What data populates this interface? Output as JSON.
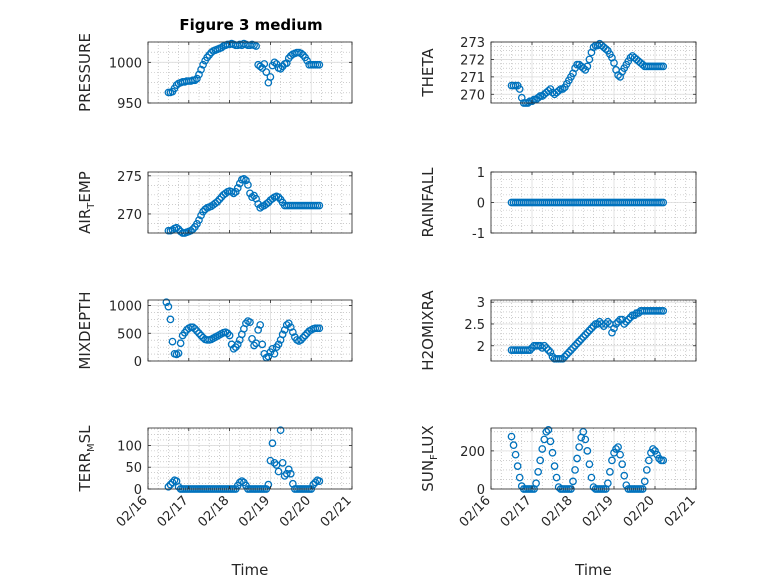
{
  "figure_title": "Figure 3 medium",
  "colors": {
    "marker": "#0072BD",
    "axis": "#262626",
    "grid": "#b0b0b0"
  },
  "chart_data": [
    {
      "type": "scatter",
      "title": "Figure 3 medium",
      "ylabel": "PRESSURE",
      "ylim": [
        950,
        1025
      ],
      "yticks": [
        950,
        1000
      ],
      "xlabel": "",
      "xticks": [
        "02/16",
        "02/17",
        "02/18",
        "02/19",
        "02/20",
        "02/21"
      ],
      "xlim": [
        0,
        5
      ],
      "grid": true,
      "x": [
        0.5,
        0.55,
        0.6,
        0.65,
        0.7,
        0.75,
        0.8,
        0.85,
        0.9,
        0.95,
        1.0,
        1.05,
        1.1,
        1.15,
        1.2,
        1.25,
        1.3,
        1.35,
        1.4,
        1.45,
        1.5,
        1.55,
        1.6,
        1.65,
        1.7,
        1.75,
        1.8,
        1.85,
        1.9,
        1.95,
        2.0,
        2.05,
        2.1,
        2.15,
        2.2,
        2.25,
        2.3,
        2.35,
        2.4,
        2.45,
        2.5,
        2.55,
        2.6,
        2.65,
        2.7,
        2.75,
        2.8,
        2.85,
        2.9,
        2.95,
        3.0,
        3.05,
        3.1,
        3.15,
        3.2,
        3.25,
        3.3,
        3.35,
        3.4,
        3.45,
        3.5,
        3.55,
        3.6,
        3.65,
        3.7,
        3.75,
        3.8,
        3.85,
        3.9,
        3.95,
        4.0,
        4.05,
        4.1,
        4.15,
        4.2
      ],
      "values": [
        963,
        963,
        964,
        968,
        972,
        974,
        975,
        976,
        976,
        977,
        977,
        977,
        978,
        978,
        980,
        985,
        991,
        997,
        1002,
        1006,
        1009,
        1012,
        1014,
        1015,
        1016,
        1017,
        1018,
        1020,
        1021,
        1022,
        1022,
        1023,
        1022,
        1021,
        1021,
        1022,
        1021,
        1023,
        1022,
        1021,
        1021,
        1022,
        1021,
        1020,
        997,
        995,
        993,
        998,
        988,
        975,
        982,
        996,
        1000,
        998,
        993,
        992,
        995,
        998,
        999,
        1005,
        1008,
        1010,
        1011,
        1012,
        1012,
        1011,
        1009,
        1006,
        1002,
        997,
        997,
        997,
        997,
        997,
        997
      ]
    },
    {
      "type": "scatter",
      "ylabel": "THETA",
      "ylim": [
        269.5,
        273
      ],
      "yticks": [
        270,
        271,
        272,
        273
      ],
      "xlabel": "",
      "xticks": [
        "02/16",
        "02/17",
        "02/18",
        "02/19",
        "02/20",
        "02/21"
      ],
      "xlim": [
        0,
        5
      ],
      "grid": true,
      "x": [
        0.5,
        0.55,
        0.6,
        0.65,
        0.7,
        0.75,
        0.8,
        0.85,
        0.9,
        0.95,
        1.0,
        1.05,
        1.1,
        1.15,
        1.2,
        1.25,
        1.3,
        1.35,
        1.4,
        1.45,
        1.5,
        1.55,
        1.6,
        1.65,
        1.7,
        1.75,
        1.8,
        1.85,
        1.9,
        1.95,
        2.0,
        2.05,
        2.1,
        2.15,
        2.2,
        2.25,
        2.3,
        2.35,
        2.4,
        2.45,
        2.5,
        2.55,
        2.6,
        2.65,
        2.7,
        2.75,
        2.8,
        2.85,
        2.9,
        2.95,
        3.0,
        3.05,
        3.1,
        3.15,
        3.2,
        3.25,
        3.3,
        3.35,
        3.4,
        3.45,
        3.5,
        3.55,
        3.6,
        3.65,
        3.7,
        3.75,
        3.8,
        3.85,
        3.9,
        3.95,
        4.0,
        4.05,
        4.1,
        4.15,
        4.2
      ],
      "values": [
        270.5,
        270.5,
        270.5,
        270.5,
        270.3,
        269.8,
        269.5,
        269.5,
        269.5,
        269.6,
        269.6,
        269.7,
        269.7,
        269.8,
        269.9,
        269.9,
        270.0,
        270.1,
        270.2,
        270.3,
        270.1,
        270.0,
        270.1,
        270.2,
        270.3,
        270.3,
        270.4,
        270.6,
        270.8,
        271.0,
        271.2,
        271.5,
        271.7,
        271.7,
        271.6,
        271.5,
        271.4,
        271.6,
        272.0,
        272.4,
        272.7,
        272.8,
        272.8,
        272.9,
        272.8,
        272.7,
        272.6,
        272.5,
        272.3,
        272.1,
        271.8,
        271.4,
        271.1,
        271.0,
        271.3,
        271.5,
        271.7,
        271.9,
        272.1,
        272.2,
        272.1,
        272.0,
        271.9,
        271.8,
        271.7,
        271.6,
        271.6,
        271.6,
        271.6,
        271.6,
        271.6,
        271.6,
        271.6,
        271.6,
        271.6
      ]
    },
    {
      "type": "scatter",
      "ylabel": "AIR",
      "ylabel_sub": "T",
      "ylabel_rest": "EMP",
      "ylim": [
        267.5,
        275.5
      ],
      "yticks": [
        270,
        275
      ],
      "xlabel": "",
      "xticks": [
        "02/16",
        "02/17",
        "02/18",
        "02/19",
        "02/20",
        "02/21"
      ],
      "xlim": [
        0,
        5
      ],
      "grid": true,
      "x": [
        0.5,
        0.55,
        0.6,
        0.65,
        0.7,
        0.75,
        0.8,
        0.85,
        0.9,
        0.95,
        1.0,
        1.05,
        1.1,
        1.15,
        1.2,
        1.25,
        1.3,
        1.35,
        1.4,
        1.45,
        1.5,
        1.55,
        1.6,
        1.65,
        1.7,
        1.75,
        1.8,
        1.85,
        1.9,
        1.95,
        2.0,
        2.05,
        2.1,
        2.15,
        2.2,
        2.25,
        2.3,
        2.35,
        2.4,
        2.45,
        2.5,
        2.55,
        2.6,
        2.65,
        2.7,
        2.75,
        2.8,
        2.85,
        2.9,
        2.95,
        3.0,
        3.05,
        3.1,
        3.15,
        3.2,
        3.25,
        3.3,
        3.35,
        3.4,
        3.45,
        3.5,
        3.55,
        3.6,
        3.65,
        3.7,
        3.75,
        3.8,
        3.85,
        3.9,
        3.95,
        4.0,
        4.05,
        4.1,
        4.15,
        4.2
      ],
      "values": [
        267.8,
        267.8,
        267.9,
        268.1,
        268.2,
        268.0,
        267.7,
        267.5,
        267.5,
        267.6,
        267.7,
        267.8,
        268.0,
        268.3,
        268.7,
        269.2,
        269.8,
        270.3,
        270.6,
        270.8,
        270.9,
        271.0,
        271.2,
        271.4,
        271.6,
        271.9,
        272.2,
        272.5,
        272.7,
        272.9,
        273.0,
        272.9,
        272.7,
        272.9,
        273.4,
        274.0,
        274.5,
        274.6,
        274.4,
        273.8,
        272.7,
        272.2,
        272.4,
        272.0,
        271.3,
        270.8,
        271.0,
        271.1,
        271.3,
        271.5,
        271.8,
        272.0,
        272.2,
        272.3,
        272.2,
        271.9,
        271.5,
        271.1,
        271.1,
        271.1,
        271.1,
        271.1,
        271.1,
        271.1,
        271.1,
        271.1,
        271.1,
        271.1,
        271.1,
        271.1,
        271.1,
        271.1,
        271.1,
        271.1,
        271.1
      ]
    },
    {
      "type": "scatter",
      "ylabel": "RAINFALL",
      "ylim": [
        -1,
        1
      ],
      "yticks": [
        -1,
        0,
        1
      ],
      "xlabel": "",
      "xticks": [
        "02/16",
        "02/17",
        "02/18",
        "02/19",
        "02/20",
        "02/21"
      ],
      "xlim": [
        0,
        5
      ],
      "grid": true,
      "x_range": [
        0.5,
        4.2
      ],
      "constant_value": 0
    },
    {
      "type": "scatter",
      "ylabel": "MIXDEPTH",
      "ylim": [
        0,
        1100
      ],
      "yticks": [
        0,
        500,
        1000
      ],
      "xlabel": "",
      "xticks": [
        "02/16",
        "02/17",
        "02/18",
        "02/19",
        "02/20",
        "02/21"
      ],
      "xlim": [
        0,
        5
      ],
      "grid": true,
      "x": [
        0.45,
        0.5,
        0.55,
        0.6,
        0.65,
        0.7,
        0.75,
        0.8,
        0.85,
        0.9,
        0.95,
        1.0,
        1.05,
        1.1,
        1.15,
        1.2,
        1.25,
        1.3,
        1.35,
        1.4,
        1.45,
        1.5,
        1.55,
        1.6,
        1.65,
        1.7,
        1.75,
        1.8,
        1.85,
        1.9,
        1.95,
        2.0,
        2.05,
        2.1,
        2.15,
        2.2,
        2.25,
        2.3,
        2.35,
        2.4,
        2.45,
        2.5,
        2.55,
        2.6,
        2.65,
        2.7,
        2.75,
        2.8,
        2.85,
        2.9,
        2.95,
        3.0,
        3.05,
        3.1,
        3.15,
        3.2,
        3.25,
        3.3,
        3.35,
        3.4,
        3.45,
        3.5,
        3.55,
        3.6,
        3.65,
        3.7,
        3.75,
        3.8,
        3.85,
        3.9,
        3.95,
        4.0,
        4.05,
        4.1,
        4.15,
        4.2
      ],
      "values": [
        1060,
        980,
        750,
        350,
        130,
        120,
        140,
        320,
        460,
        510,
        560,
        590,
        610,
        610,
        580,
        540,
        500,
        460,
        420,
        390,
        380,
        380,
        390,
        410,
        430,
        450,
        470,
        490,
        510,
        520,
        500,
        460,
        300,
        220,
        250,
        300,
        380,
        480,
        580,
        680,
        720,
        700,
        400,
        280,
        320,
        560,
        650,
        300,
        130,
        60,
        80,
        160,
        220,
        130,
        250,
        300,
        380,
        480,
        560,
        650,
        680,
        610,
        520,
        430,
        380,
        360,
        380,
        420,
        460,
        500,
        540,
        560,
        580,
        590,
        590,
        590
      ]
    },
    {
      "type": "scatter",
      "ylabel": "H2OMIXRA",
      "ylim": [
        1.65,
        3.05
      ],
      "yticks": [
        2,
        2.5,
        3
      ],
      "xlabel": "",
      "xticks": [
        "02/16",
        "02/17",
        "02/18",
        "02/19",
        "02/20",
        "02/21"
      ],
      "xlim": [
        0,
        5
      ],
      "grid": true,
      "x": [
        0.5,
        0.55,
        0.6,
        0.65,
        0.7,
        0.75,
        0.8,
        0.85,
        0.9,
        0.95,
        1.0,
        1.05,
        1.1,
        1.15,
        1.2,
        1.25,
        1.3,
        1.35,
        1.4,
        1.45,
        1.5,
        1.55,
        1.6,
        1.65,
        1.7,
        1.75,
        1.8,
        1.85,
        1.9,
        1.95,
        2.0,
        2.05,
        2.1,
        2.15,
        2.2,
        2.25,
        2.3,
        2.35,
        2.4,
        2.45,
        2.5,
        2.55,
        2.6,
        2.65,
        2.7,
        2.75,
        2.8,
        2.85,
        2.9,
        2.95,
        3.0,
        3.05,
        3.1,
        3.15,
        3.2,
        3.25,
        3.3,
        3.35,
        3.4,
        3.45,
        3.5,
        3.55,
        3.6,
        3.65,
        3.7,
        3.75,
        3.8,
        3.85,
        3.9,
        3.95,
        4.0,
        4.05,
        4.1,
        4.15,
        4.2
      ],
      "values": [
        1.9,
        1.9,
        1.9,
        1.9,
        1.9,
        1.9,
        1.9,
        1.9,
        1.9,
        1.9,
        1.95,
        2.0,
        2.0,
        2.0,
        2.0,
        1.95,
        2.0,
        1.95,
        1.9,
        1.85,
        1.75,
        1.7,
        1.7,
        1.7,
        1.7,
        1.7,
        1.75,
        1.8,
        1.85,
        1.9,
        1.95,
        2.0,
        2.05,
        2.1,
        2.15,
        2.2,
        2.25,
        2.3,
        2.35,
        2.4,
        2.45,
        2.5,
        2.5,
        2.55,
        2.5,
        2.45,
        2.5,
        2.55,
        2.5,
        2.3,
        2.4,
        2.5,
        2.55,
        2.6,
        2.6,
        2.5,
        2.55,
        2.6,
        2.65,
        2.7,
        2.7,
        2.75,
        2.75,
        2.8,
        2.8,
        2.8,
        2.8,
        2.8,
        2.8,
        2.8,
        2.8,
        2.8,
        2.8,
        2.8,
        2.8
      ]
    },
    {
      "type": "scatter",
      "ylabel": "TERR",
      "ylabel_sub": "M",
      "ylabel_rest": "SL",
      "ylim": [
        0,
        140
      ],
      "yticks": [
        0,
        50,
        100
      ],
      "xlabel": "Time",
      "xticks": [
        "02/16",
        "02/17",
        "02/18",
        "02/19",
        "02/20",
        "02/21"
      ],
      "xlim": [
        0,
        5
      ],
      "grid": true,
      "x": [
        0.5,
        0.55,
        0.6,
        0.65,
        0.7,
        0.75,
        0.8,
        0.85,
        0.9,
        0.95,
        1.0,
        1.05,
        1.1,
        1.15,
        1.2,
        1.25,
        1.3,
        1.35,
        1.4,
        1.45,
        1.5,
        1.55,
        1.6,
        1.65,
        1.7,
        1.75,
        1.8,
        1.85,
        1.9,
        1.95,
        2.0,
        2.05,
        2.1,
        2.15,
        2.2,
        2.25,
        2.3,
        2.35,
        2.4,
        2.45,
        2.5,
        2.55,
        2.6,
        2.65,
        2.7,
        2.75,
        2.8,
        2.85,
        2.9,
        2.95,
        3.0,
        3.05,
        3.1,
        3.15,
        3.2,
        3.25,
        3.3,
        3.35,
        3.4,
        3.45,
        3.5,
        3.55,
        3.6,
        3.65,
        3.7,
        3.75,
        3.8,
        3.85,
        3.9,
        3.95,
        4.0,
        4.05,
        4.1,
        4.15,
        4.2
      ],
      "values": [
        5,
        10,
        15,
        20,
        18,
        5,
        0,
        0,
        0,
        0,
        0,
        0,
        0,
        0,
        0,
        0,
        0,
        0,
        0,
        0,
        0,
        0,
        0,
        0,
        0,
        0,
        0,
        0,
        0,
        0,
        0,
        0,
        0,
        0,
        8,
        15,
        18,
        15,
        8,
        0,
        0,
        0,
        0,
        0,
        0,
        0,
        0,
        0,
        0,
        10,
        65,
        105,
        60,
        55,
        40,
        135,
        60,
        30,
        35,
        45,
        35,
        12,
        0,
        0,
        0,
        0,
        0,
        0,
        0,
        0,
        0,
        10,
        15,
        20,
        18
      ]
    },
    {
      "type": "scatter",
      "ylabel": "SUN",
      "ylabel_sub": "F",
      "ylabel_rest": "LUX",
      "ylim": [
        0,
        320
      ],
      "yticks": [
        0,
        200
      ],
      "xlabel": "Time",
      "xticks": [
        "02/16",
        "02/17",
        "02/18",
        "02/19",
        "02/20",
        "02/21"
      ],
      "xlim": [
        0,
        5
      ],
      "grid": true,
      "x": [
        0.5,
        0.55,
        0.6,
        0.65,
        0.7,
        0.75,
        0.8,
        0.85,
        0.9,
        0.95,
        1.0,
        1.05,
        1.1,
        1.15,
        1.2,
        1.25,
        1.3,
        1.35,
        1.4,
        1.45,
        1.5,
        1.55,
        1.6,
        1.65,
        1.7,
        1.75,
        1.8,
        1.85,
        1.9,
        1.95,
        2.0,
        2.05,
        2.1,
        2.15,
        2.2,
        2.25,
        2.3,
        2.35,
        2.4,
        2.45,
        2.5,
        2.55,
        2.6,
        2.65,
        2.7,
        2.75,
        2.8,
        2.85,
        2.9,
        2.95,
        3.0,
        3.05,
        3.1,
        3.15,
        3.2,
        3.25,
        3.3,
        3.35,
        3.4,
        3.45,
        3.5,
        3.55,
        3.6,
        3.65,
        3.7,
        3.75,
        3.8,
        3.85,
        3.9,
        3.95,
        4.0,
        4.05,
        4.1,
        4.15,
        4.2
      ],
      "values": [
        275,
        230,
        180,
        120,
        60,
        15,
        0,
        0,
        0,
        0,
        0,
        0,
        30,
        90,
        150,
        210,
        260,
        300,
        310,
        250,
        190,
        120,
        60,
        10,
        0,
        0,
        0,
        0,
        0,
        0,
        40,
        100,
        160,
        220,
        270,
        300,
        260,
        200,
        130,
        60,
        10,
        0,
        0,
        0,
        0,
        0,
        0,
        30,
        90,
        150,
        190,
        210,
        220,
        180,
        130,
        70,
        20,
        0,
        0,
        0,
        0,
        0,
        0,
        0,
        0,
        40,
        100,
        150,
        190,
        210,
        200,
        180,
        160,
        150,
        150
      ]
    }
  ]
}
